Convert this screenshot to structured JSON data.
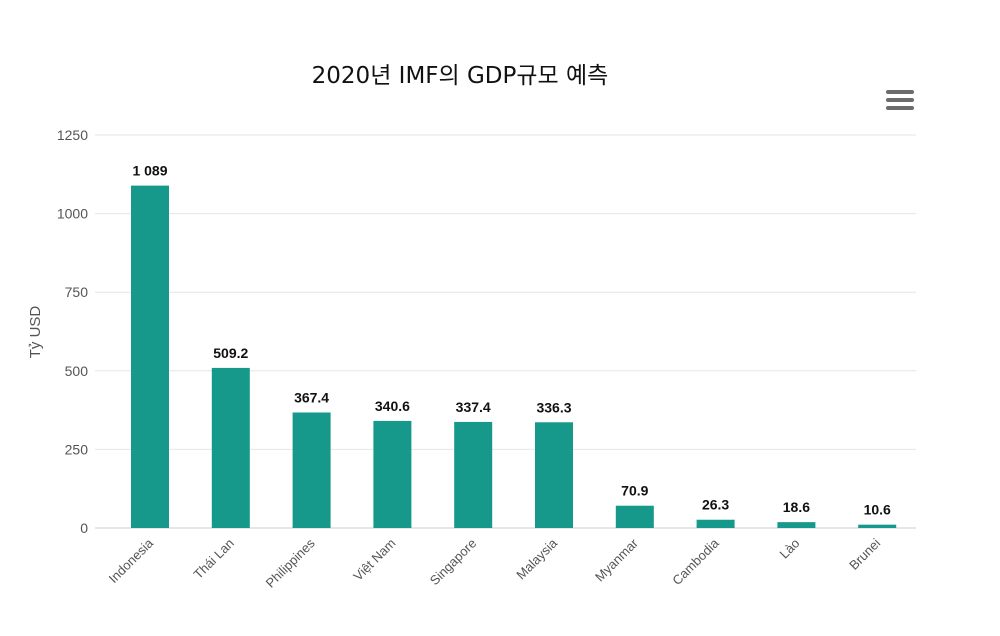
{
  "chart_data": {
    "type": "bar",
    "title": "2020년 IMF의 GDP규모 예측",
    "ylabel": "Tỷ USD",
    "xlabel": "",
    "ylim": [
      0,
      1250
    ],
    "yticks": [
      "0",
      "250",
      "500",
      "750",
      "1000",
      "1250"
    ],
    "categories": [
      "Indonesia",
      "Thái Lan",
      "Philippines",
      "Việt Nam",
      "Singapore",
      "Malaysia",
      "Myanmar",
      "Cambodia",
      "Lào",
      "Brunei"
    ],
    "values": [
      1089,
      509.2,
      367.4,
      340.6,
      337.4,
      336.3,
      70.9,
      26.3,
      18.6,
      10.6
    ],
    "value_labels": [
      "1 089",
      "509.2",
      "367.4",
      "340.6",
      "337.4",
      "336.3",
      "70.9",
      "26.3",
      "18.6",
      "10.6"
    ],
    "bar_color": "#16998A",
    "grid": true,
    "legend": "none"
  },
  "menu": {
    "icon": "hamburger-menu-icon"
  }
}
